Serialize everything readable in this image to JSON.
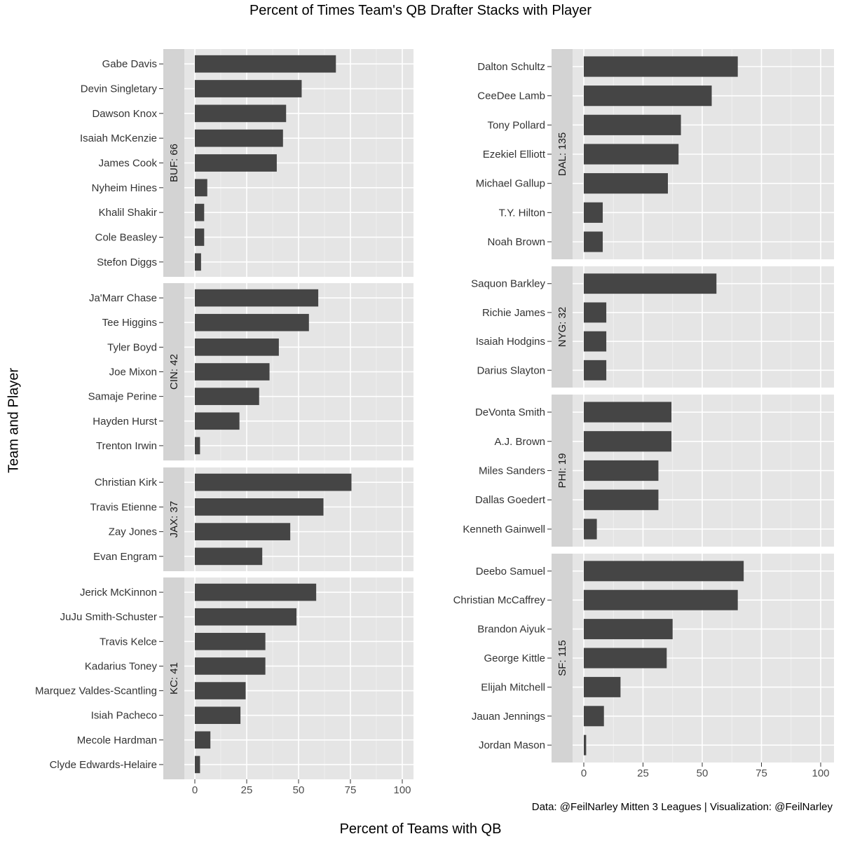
{
  "title": "Percent of Times Team's QB Drafter Stacks with Player",
  "xlabel": "Percent of Teams with QB",
  "ylabel": "Team and Player",
  "caption": "Data: @FeilNarley Mitten 3 Leagues | Visualization: @FeilNarley",
  "colors": {
    "bar": "#454545",
    "panel": "#e5e5e5",
    "strip": "#d3d3d3",
    "grid": "#ffffff"
  },
  "chart_data": {
    "type": "bar",
    "orientation": "horizontal",
    "xlim": [
      -5,
      105
    ],
    "xticks": [
      0,
      25,
      50,
      75,
      100
    ],
    "grid": true,
    "facets": [
      {
        "strip": "BUF: 66",
        "column": "left",
        "players": [
          "Gabe Davis",
          "Devin Singletary",
          "Dawson Knox",
          "Isaiah McKenzie",
          "James Cook",
          "Nyheim Hines",
          "Khalil Shakir",
          "Cole Beasley",
          "Stefon Diggs"
        ],
        "values": [
          68,
          51.5,
          44,
          42.5,
          39.5,
          6,
          4.5,
          4.5,
          3
        ]
      },
      {
        "strip": "CIN: 42",
        "column": "left",
        "players": [
          "Ja'Marr Chase",
          "Tee Higgins",
          "Tyler Boyd",
          "Joe Mixon",
          "Samaje Perine",
          "Hayden Hurst",
          "Trenton Irwin"
        ],
        "values": [
          59.5,
          55,
          40.5,
          36,
          31,
          21.5,
          2.5
        ]
      },
      {
        "strip": "JAX: 37",
        "column": "left",
        "players": [
          "Christian Kirk",
          "Travis Etienne",
          "Zay Jones",
          "Evan Engram"
        ],
        "values": [
          75.5,
          62,
          46,
          32.5
        ]
      },
      {
        "strip": "KC: 41",
        "column": "left",
        "players": [
          "Jerick McKinnon",
          "JuJu Smith-Schuster",
          "Travis Kelce",
          "Kadarius Toney",
          "Marquez Valdes-Scantling",
          "Isiah Pacheco",
          "Mecole Hardman",
          "Clyde Edwards-Helaire"
        ],
        "values": [
          58.5,
          49,
          34,
          34,
          24.5,
          22,
          7.5,
          2.5
        ]
      },
      {
        "strip": "DAL: 135",
        "column": "right",
        "players": [
          "Dalton Schultz",
          "CeeDee Lamb",
          "Tony Pollard",
          "Ezekiel Elliott",
          "Michael Gallup",
          "T.Y. Hilton",
          "Noah Brown"
        ],
        "values": [
          65,
          54,
          41,
          40,
          35.5,
          8,
          8
        ]
      },
      {
        "strip": "NYG: 32",
        "column": "right",
        "players": [
          "Saquon Barkley",
          "Richie James",
          "Isaiah Hodgins",
          "Darius Slayton"
        ],
        "values": [
          56,
          9.5,
          9.5,
          9.5
        ]
      },
      {
        "strip": "PHI: 19",
        "column": "right",
        "players": [
          "DeVonta Smith",
          "A.J. Brown",
          "Miles Sanders",
          "Dallas Goedert",
          "Kenneth Gainwell"
        ],
        "values": [
          37,
          37,
          31.5,
          31.5,
          5.5
        ]
      },
      {
        "strip": "SF: 115",
        "column": "right",
        "players": [
          "Deebo Samuel",
          "Christian McCaffrey",
          "Brandon Aiyuk",
          "George Kittle",
          "Elijah Mitchell",
          "Jauan Jennings",
          "Jordan Mason"
        ],
        "values": [
          67.5,
          65,
          37.5,
          35,
          15.5,
          8.5,
          1
        ]
      }
    ]
  }
}
